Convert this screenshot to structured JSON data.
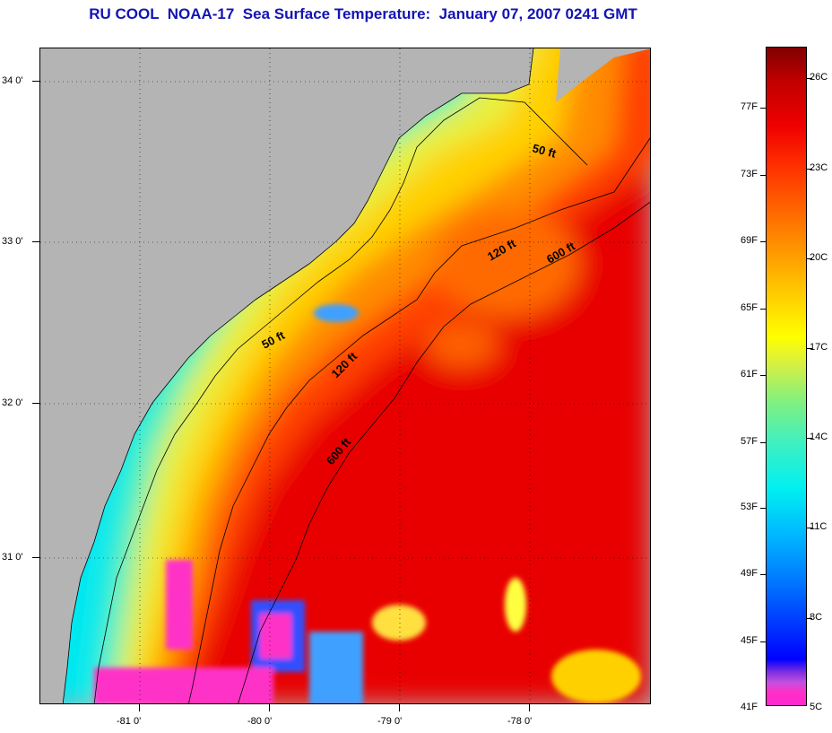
{
  "title": "RU COOL  NOAA-17  Sea Surface Temperature:  January 07, 2007 0241 GMT",
  "map": {
    "latitude_labels": [
      "34 0'",
      "33 0'",
      "32 0'",
      "31 0'"
    ],
    "longitude_labels": [
      "-81 0'",
      "-80 0'",
      "-79 0'",
      "-78 0'"
    ],
    "contour_labels": [
      "50 ft",
      "120 ft",
      "600 ft",
      "50 ft",
      "120 ft",
      "600 ft"
    ],
    "land_color": "#b4b4b4"
  },
  "colorbar": {
    "fahrenheit": [
      "77F",
      "73F",
      "69F",
      "65F",
      "61F",
      "57F",
      "53F",
      "49F",
      "45F",
      "41F"
    ],
    "celsius": [
      "26C",
      "23C",
      "20C",
      "17C",
      "14C",
      "11C",
      "8C",
      "5C"
    ],
    "range_f": [
      41,
      80
    ],
    "range_c": [
      5,
      26.7
    ]
  }
}
